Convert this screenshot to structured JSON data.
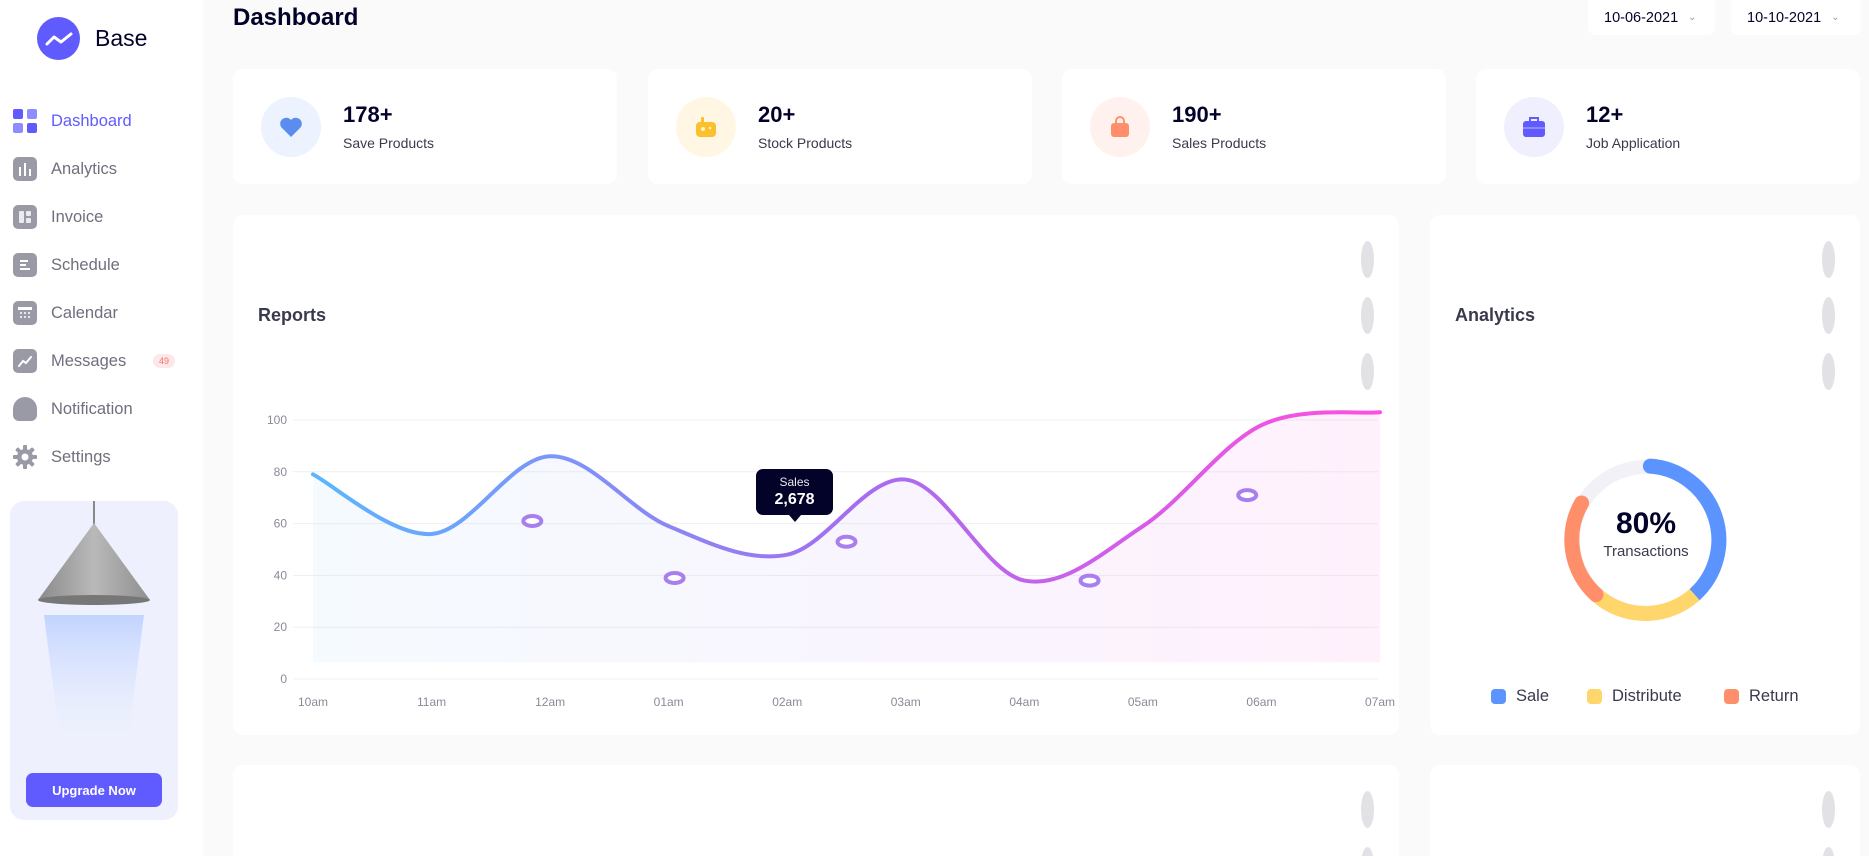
{
  "brand": {
    "name": "Base"
  },
  "sidebar": {
    "items": [
      {
        "label": "Dashboard",
        "icon": "dashboard-icon",
        "active": true
      },
      {
        "label": "Analytics",
        "icon": "analytics-icon"
      },
      {
        "label": "Invoice",
        "icon": "invoice-icon"
      },
      {
        "label": "Schedule",
        "icon": "schedule-icon"
      },
      {
        "label": "Calendar",
        "icon": "calendar-icon"
      },
      {
        "label": "Messages",
        "icon": "messages-icon",
        "badge": "49"
      },
      {
        "label": "Notification",
        "icon": "bell-icon"
      },
      {
        "label": "Settings",
        "icon": "gear-icon"
      }
    ],
    "promo": {
      "button_label": "Upgrade Now"
    }
  },
  "header": {
    "title": "Dashboard",
    "date_from": "10-06-2021",
    "date_to": "10-10-2021"
  },
  "stats": [
    {
      "value": "178+",
      "label": "Save Products",
      "icon": "heart-icon",
      "color": "#5b8def",
      "bg": "#ecf2fe"
    },
    {
      "value": "20+",
      "label": "Stock Products",
      "icon": "game-icon",
      "color": "#fbc02d",
      "bg": "#fff7e3"
    },
    {
      "value": "190+",
      "label": "Sales Products",
      "icon": "bag-icon",
      "color": "#ff8f6b",
      "bg": "#fff1ed"
    },
    {
      "value": "12+",
      "label": "Job Application",
      "icon": "briefcase-icon",
      "color": "#605bff",
      "bg": "#efeffe"
    }
  ],
  "reports": {
    "title": "Reports",
    "tooltip": {
      "label": "Sales",
      "value": "2,678"
    }
  },
  "analytics": {
    "title": "Analytics",
    "percent": "80%",
    "caption": "Transactions",
    "legend": [
      {
        "label": "Sale",
        "color": "#5b93ff"
      },
      {
        "label": "Distribute",
        "color": "#ffd66b"
      },
      {
        "label": "Return",
        "color": "#ff8f6b"
      }
    ]
  },
  "chart_data": {
    "type": "line",
    "title": "",
    "xlabel": "",
    "ylabel": "",
    "categories": [
      "10am",
      "11am",
      "12am",
      "01am",
      "02am",
      "03am",
      "04am",
      "05am",
      "06am",
      "07am"
    ],
    "ylim": [
      0,
      100
    ],
    "yticks": [
      "0",
      "20",
      "40",
      "60",
      "80",
      "100"
    ],
    "series": [
      {
        "x": [
          0,
          1,
          2,
          3,
          4,
          5,
          6,
          7,
          8,
          9
        ],
        "values": [
          79,
          56,
          86,
          59,
          48,
          77,
          38,
          59,
          98,
          103
        ]
      }
    ],
    "markers": [
      {
        "x": 1.85,
        "y": 61
      },
      {
        "x": 3.05,
        "y": 39
      },
      {
        "x": 4.5,
        "y": 53
      },
      {
        "x": 6.55,
        "y": 38
      },
      {
        "x": 7.88,
        "y": 71
      }
    ],
    "gradient": [
      "#5bb6ff",
      "#a36ef0",
      "#ff4fe0"
    ],
    "grid": true
  }
}
